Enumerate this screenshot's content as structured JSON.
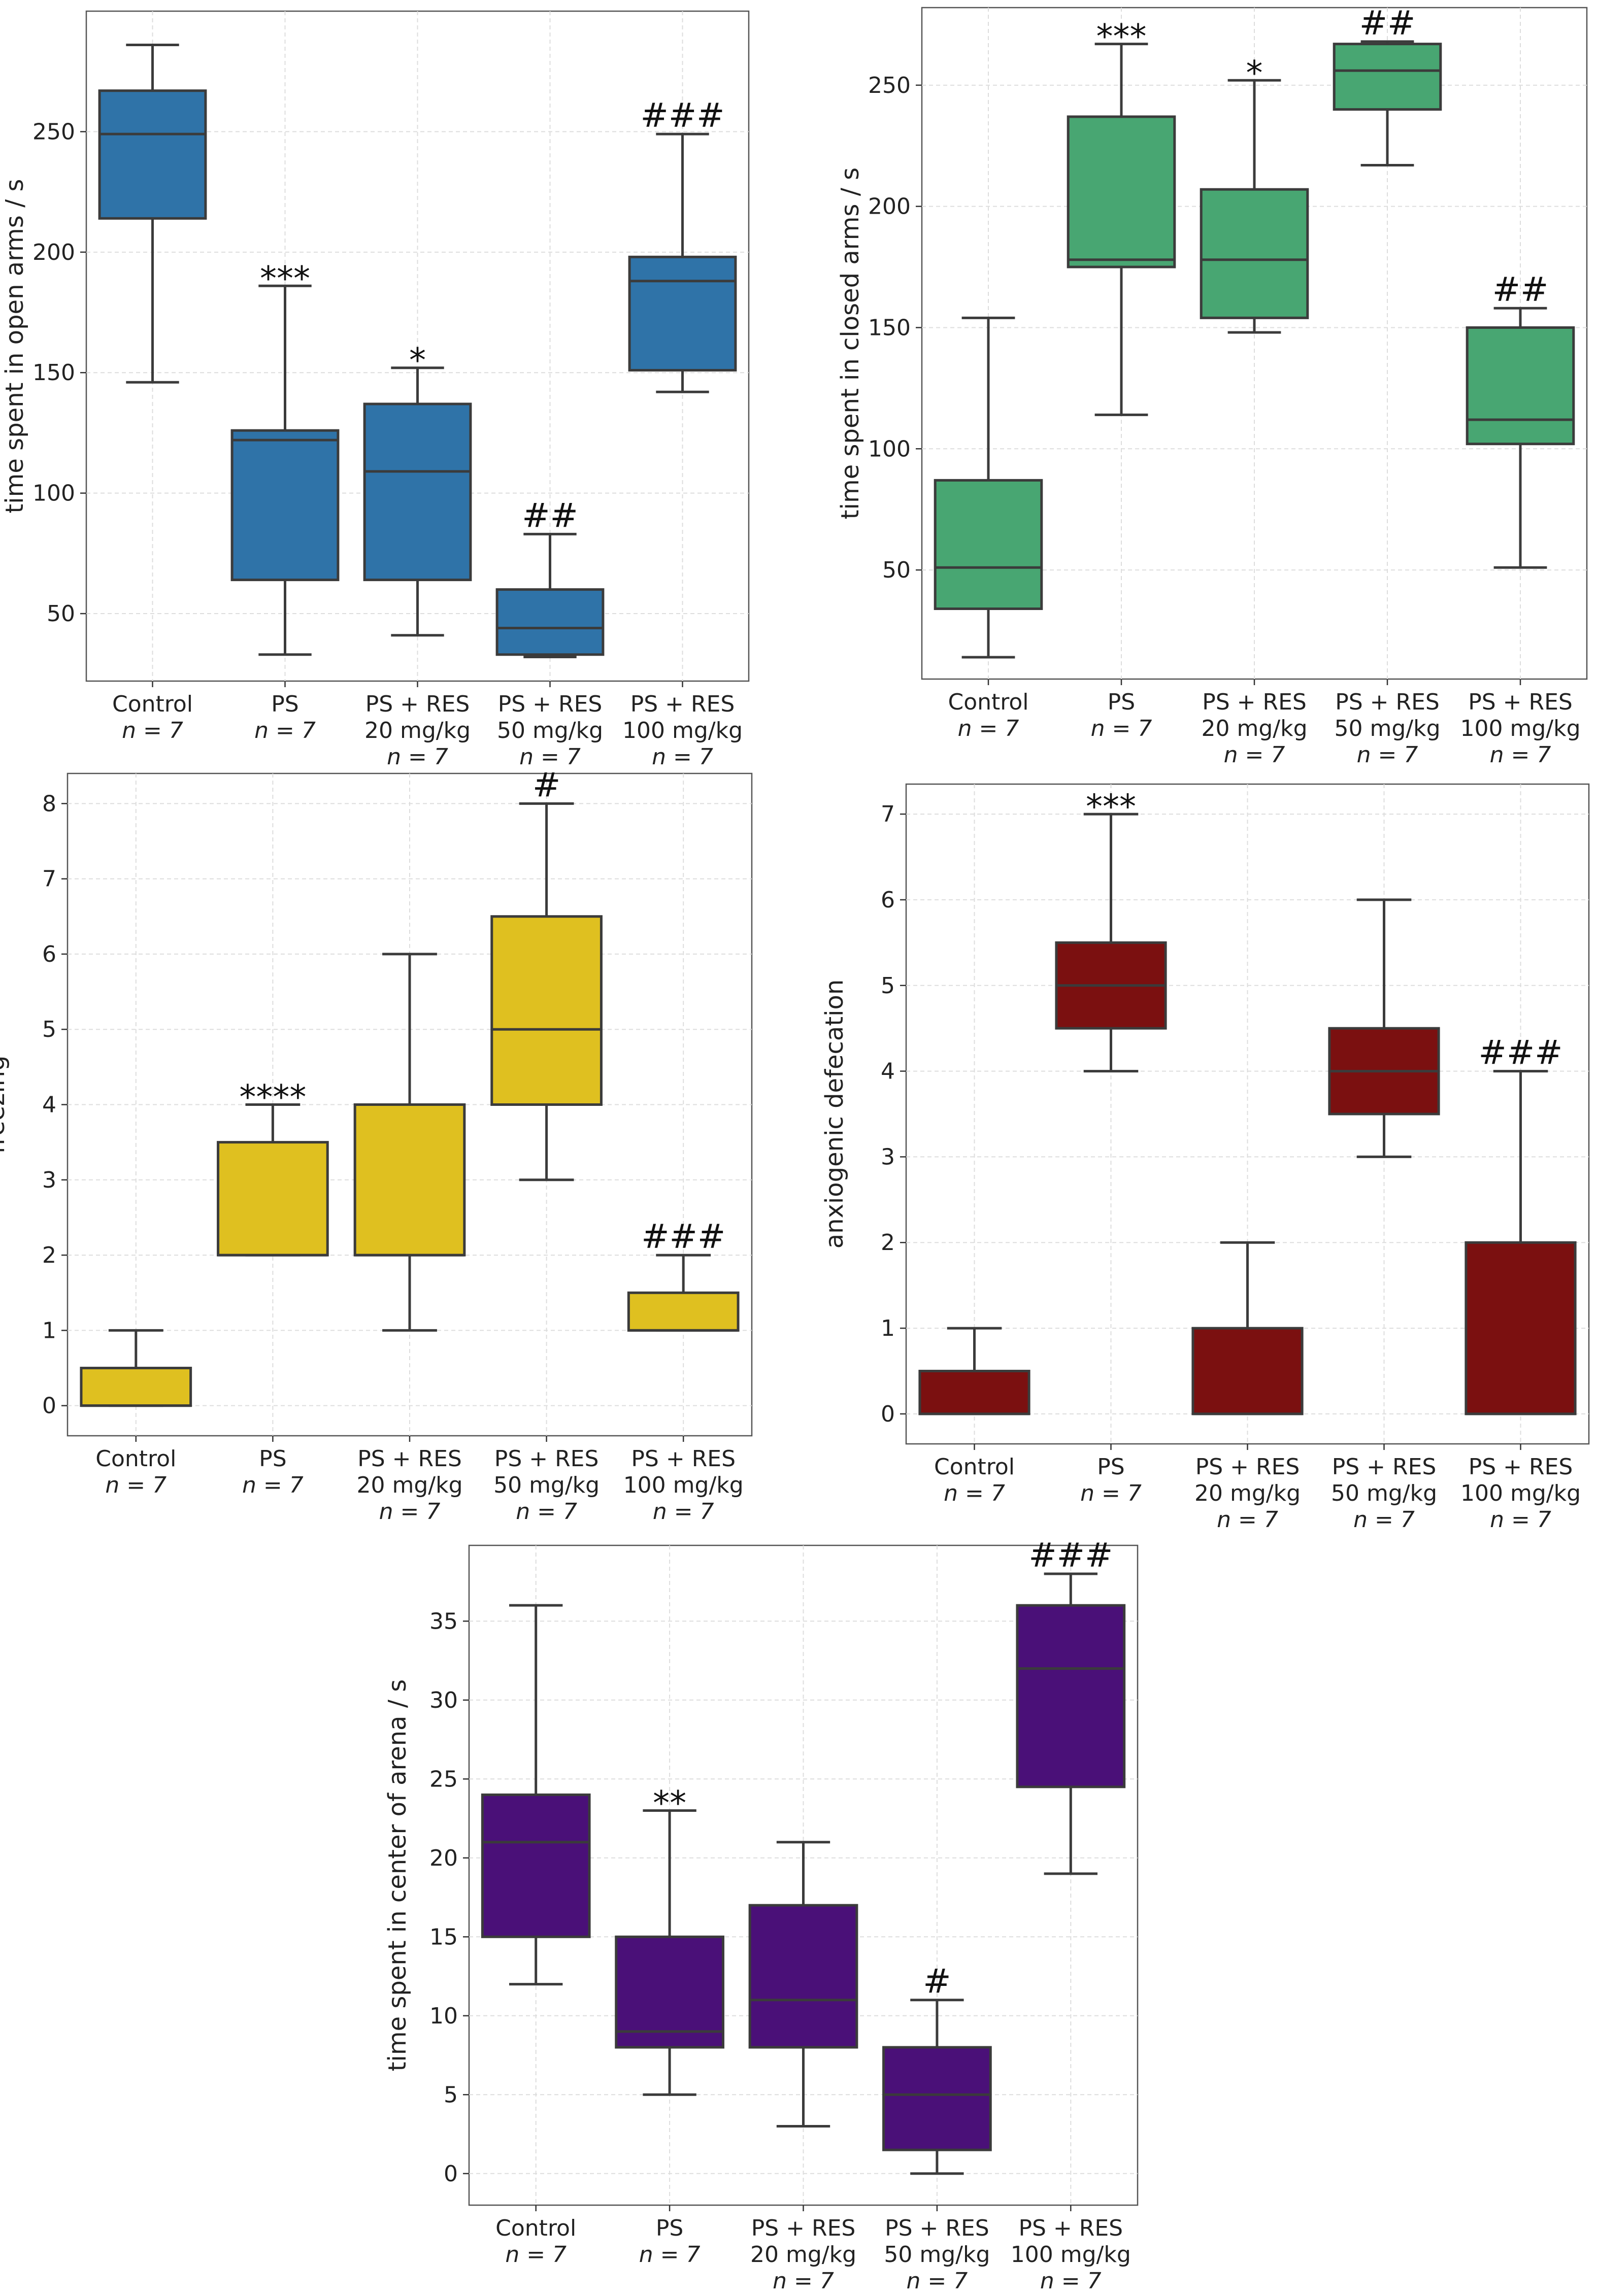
{
  "chart_data": [
    {
      "type": "box",
      "ylabel": "time spent in open arms / s",
      "ylim": [
        22,
        300
      ],
      "yticks": [
        50,
        100,
        150,
        200,
        250
      ],
      "grid": true,
      "color": "#2f73a8",
      "categories": [
        {
          "name": "Control",
          "line2": "",
          "n": "n = 7"
        },
        {
          "name": "PS",
          "line2": "",
          "n": "n = 7"
        },
        {
          "name": "PS + RES",
          "line2": "20 mg/kg",
          "n": "n = 7"
        },
        {
          "name": "PS + RES",
          "line2": "50 mg/kg",
          "n": "n = 7"
        },
        {
          "name": "PS + RES",
          "line2": "100 mg/kg",
          "n": "n = 7"
        }
      ],
      "boxes": [
        {
          "min": 146,
          "q1": 214,
          "median": 249,
          "q3": 267,
          "max": 286,
          "sig": ""
        },
        {
          "min": 33,
          "q1": 64,
          "median": 122,
          "q3": 126,
          "max": 186,
          "sig": "***"
        },
        {
          "min": 41,
          "q1": 64,
          "median": 109,
          "q3": 137,
          "max": 152,
          "sig": "*"
        },
        {
          "min": 32,
          "q1": 33,
          "median": 44,
          "q3": 60,
          "max": 83,
          "sig": "##"
        },
        {
          "min": 142,
          "q1": 151,
          "median": 188,
          "q3": 198,
          "max": 249,
          "sig": "###"
        }
      ]
    },
    {
      "type": "box",
      "ylabel": "time spent in closed arms / s",
      "ylim": [
        5,
        282
      ],
      "yticks": [
        50,
        100,
        150,
        200,
        250
      ],
      "grid": true,
      "color": "#48a672",
      "categories": [
        {
          "name": "Control",
          "line2": "",
          "n": "n = 7"
        },
        {
          "name": "PS",
          "line2": "",
          "n": "n = 7"
        },
        {
          "name": "PS + RES",
          "line2": "20 mg/kg",
          "n": "n = 7"
        },
        {
          "name": "PS + RES",
          "line2": "50 mg/kg",
          "n": "n = 7"
        },
        {
          "name": "PS + RES",
          "line2": "100 mg/kg",
          "n": "n = 7"
        }
      ],
      "boxes": [
        {
          "min": 14,
          "q1": 34,
          "median": 51,
          "q3": 87,
          "max": 154,
          "sig": ""
        },
        {
          "min": 114,
          "q1": 175,
          "median": 178,
          "q3": 237,
          "max": 267,
          "sig": "***"
        },
        {
          "min": 148,
          "q1": 154,
          "median": 178,
          "q3": 207,
          "max": 252,
          "sig": "*"
        },
        {
          "min": 217,
          "q1": 240,
          "median": 256,
          "q3": 267,
          "max": 268,
          "sig": "##"
        },
        {
          "min": 51,
          "q1": 102,
          "median": 112,
          "q3": 150,
          "max": 158,
          "sig": "##"
        }
      ]
    },
    {
      "type": "box",
      "ylabel": "freezing",
      "ylim": [
        -0.4,
        8.4
      ],
      "yticks": [
        0,
        1,
        2,
        3,
        4,
        5,
        6,
        7,
        8
      ],
      "grid": true,
      "color": "#dfc020",
      "categories": [
        {
          "name": "Control",
          "line2": "",
          "n": "n = 7"
        },
        {
          "name": "PS",
          "line2": "",
          "n": "n = 7"
        },
        {
          "name": "PS + RES",
          "line2": "20 mg/kg",
          "n": "n = 7"
        },
        {
          "name": "PS + RES",
          "line2": "50 mg/kg",
          "n": "n = 7"
        },
        {
          "name": "PS + RES",
          "line2": "100 mg/kg",
          "n": "n = 7"
        }
      ],
      "boxes": [
        {
          "min": 0,
          "q1": 0,
          "median": 0,
          "q3": 0.5,
          "max": 1,
          "sig": ""
        },
        {
          "min": 2,
          "q1": 2,
          "median": 2,
          "q3": 3.5,
          "max": 4,
          "sig": "****"
        },
        {
          "min": 1,
          "q1": 2,
          "median": 2,
          "q3": 4,
          "max": 6,
          "sig": ""
        },
        {
          "min": 3,
          "q1": 4,
          "median": 5,
          "q3": 6.5,
          "max": 8,
          "sig": "#"
        },
        {
          "min": 1,
          "q1": 1,
          "median": 1,
          "q3": 1.5,
          "max": 2,
          "sig": "###"
        }
      ]
    },
    {
      "type": "box",
      "ylabel": "anxiogenic defecation",
      "ylim": [
        -0.35,
        7.35
      ],
      "yticks": [
        0,
        1,
        2,
        3,
        4,
        5,
        6,
        7
      ],
      "grid": true,
      "color": "#7b1010",
      "categories": [
        {
          "name": "Control",
          "line2": "",
          "n": "n = 7"
        },
        {
          "name": "PS",
          "line2": "",
          "n": "n = 7"
        },
        {
          "name": "PS + RES",
          "line2": "20 mg/kg",
          "n": "n = 7"
        },
        {
          "name": "PS + RES",
          "line2": "50 mg/kg",
          "n": "n = 7"
        },
        {
          "name": "PS + RES",
          "line2": "100 mg/kg",
          "n": "n = 7"
        }
      ],
      "boxes": [
        {
          "min": 0,
          "q1": 0,
          "median": 0,
          "q3": 0.5,
          "max": 1,
          "sig": ""
        },
        {
          "min": 4,
          "q1": 4.5,
          "median": 5,
          "q3": 5.5,
          "max": 7,
          "sig": "***"
        },
        {
          "min": 0,
          "q1": 0,
          "median": 0,
          "q3": 1,
          "max": 2,
          "sig": ""
        },
        {
          "min": 3,
          "q1": 3.5,
          "median": 4,
          "q3": 4.5,
          "max": 6,
          "sig": ""
        },
        {
          "min": 0,
          "q1": 0,
          "median": 0,
          "q3": 2,
          "max": 4,
          "sig": "###"
        }
      ]
    },
    {
      "type": "box",
      "ylabel": "time spent in center of arena / s",
      "ylim": [
        -2,
        39.8
      ],
      "yticks": [
        0,
        5,
        10,
        15,
        20,
        25,
        30,
        35
      ],
      "grid": true,
      "color": "#4a1078",
      "categories": [
        {
          "name": "Control",
          "line2": "",
          "n": "n = 7"
        },
        {
          "name": "PS",
          "line2": "",
          "n": "n = 7"
        },
        {
          "name": "PS + RES",
          "line2": "20 mg/kg",
          "n": "n = 7"
        },
        {
          "name": "PS + RES",
          "line2": "50 mg/kg",
          "n": "n = 7"
        },
        {
          "name": "PS + RES",
          "line2": "100 mg/kg",
          "n": "n = 7"
        }
      ],
      "boxes": [
        {
          "min": 12,
          "q1": 15,
          "median": 21,
          "q3": 24,
          "max": 36,
          "sig": ""
        },
        {
          "min": 5,
          "q1": 8,
          "median": 9,
          "q3": 15,
          "max": 23,
          "sig": "**"
        },
        {
          "min": 3,
          "q1": 8,
          "median": 11,
          "q3": 17,
          "max": 21,
          "sig": ""
        },
        {
          "min": 0,
          "q1": 1.5,
          "median": 5,
          "q3": 8,
          "max": 11,
          "sig": "#"
        },
        {
          "min": 19,
          "q1": 24.5,
          "median": 32,
          "q3": 36,
          "max": 38,
          "sig": "###"
        }
      ]
    }
  ]
}
